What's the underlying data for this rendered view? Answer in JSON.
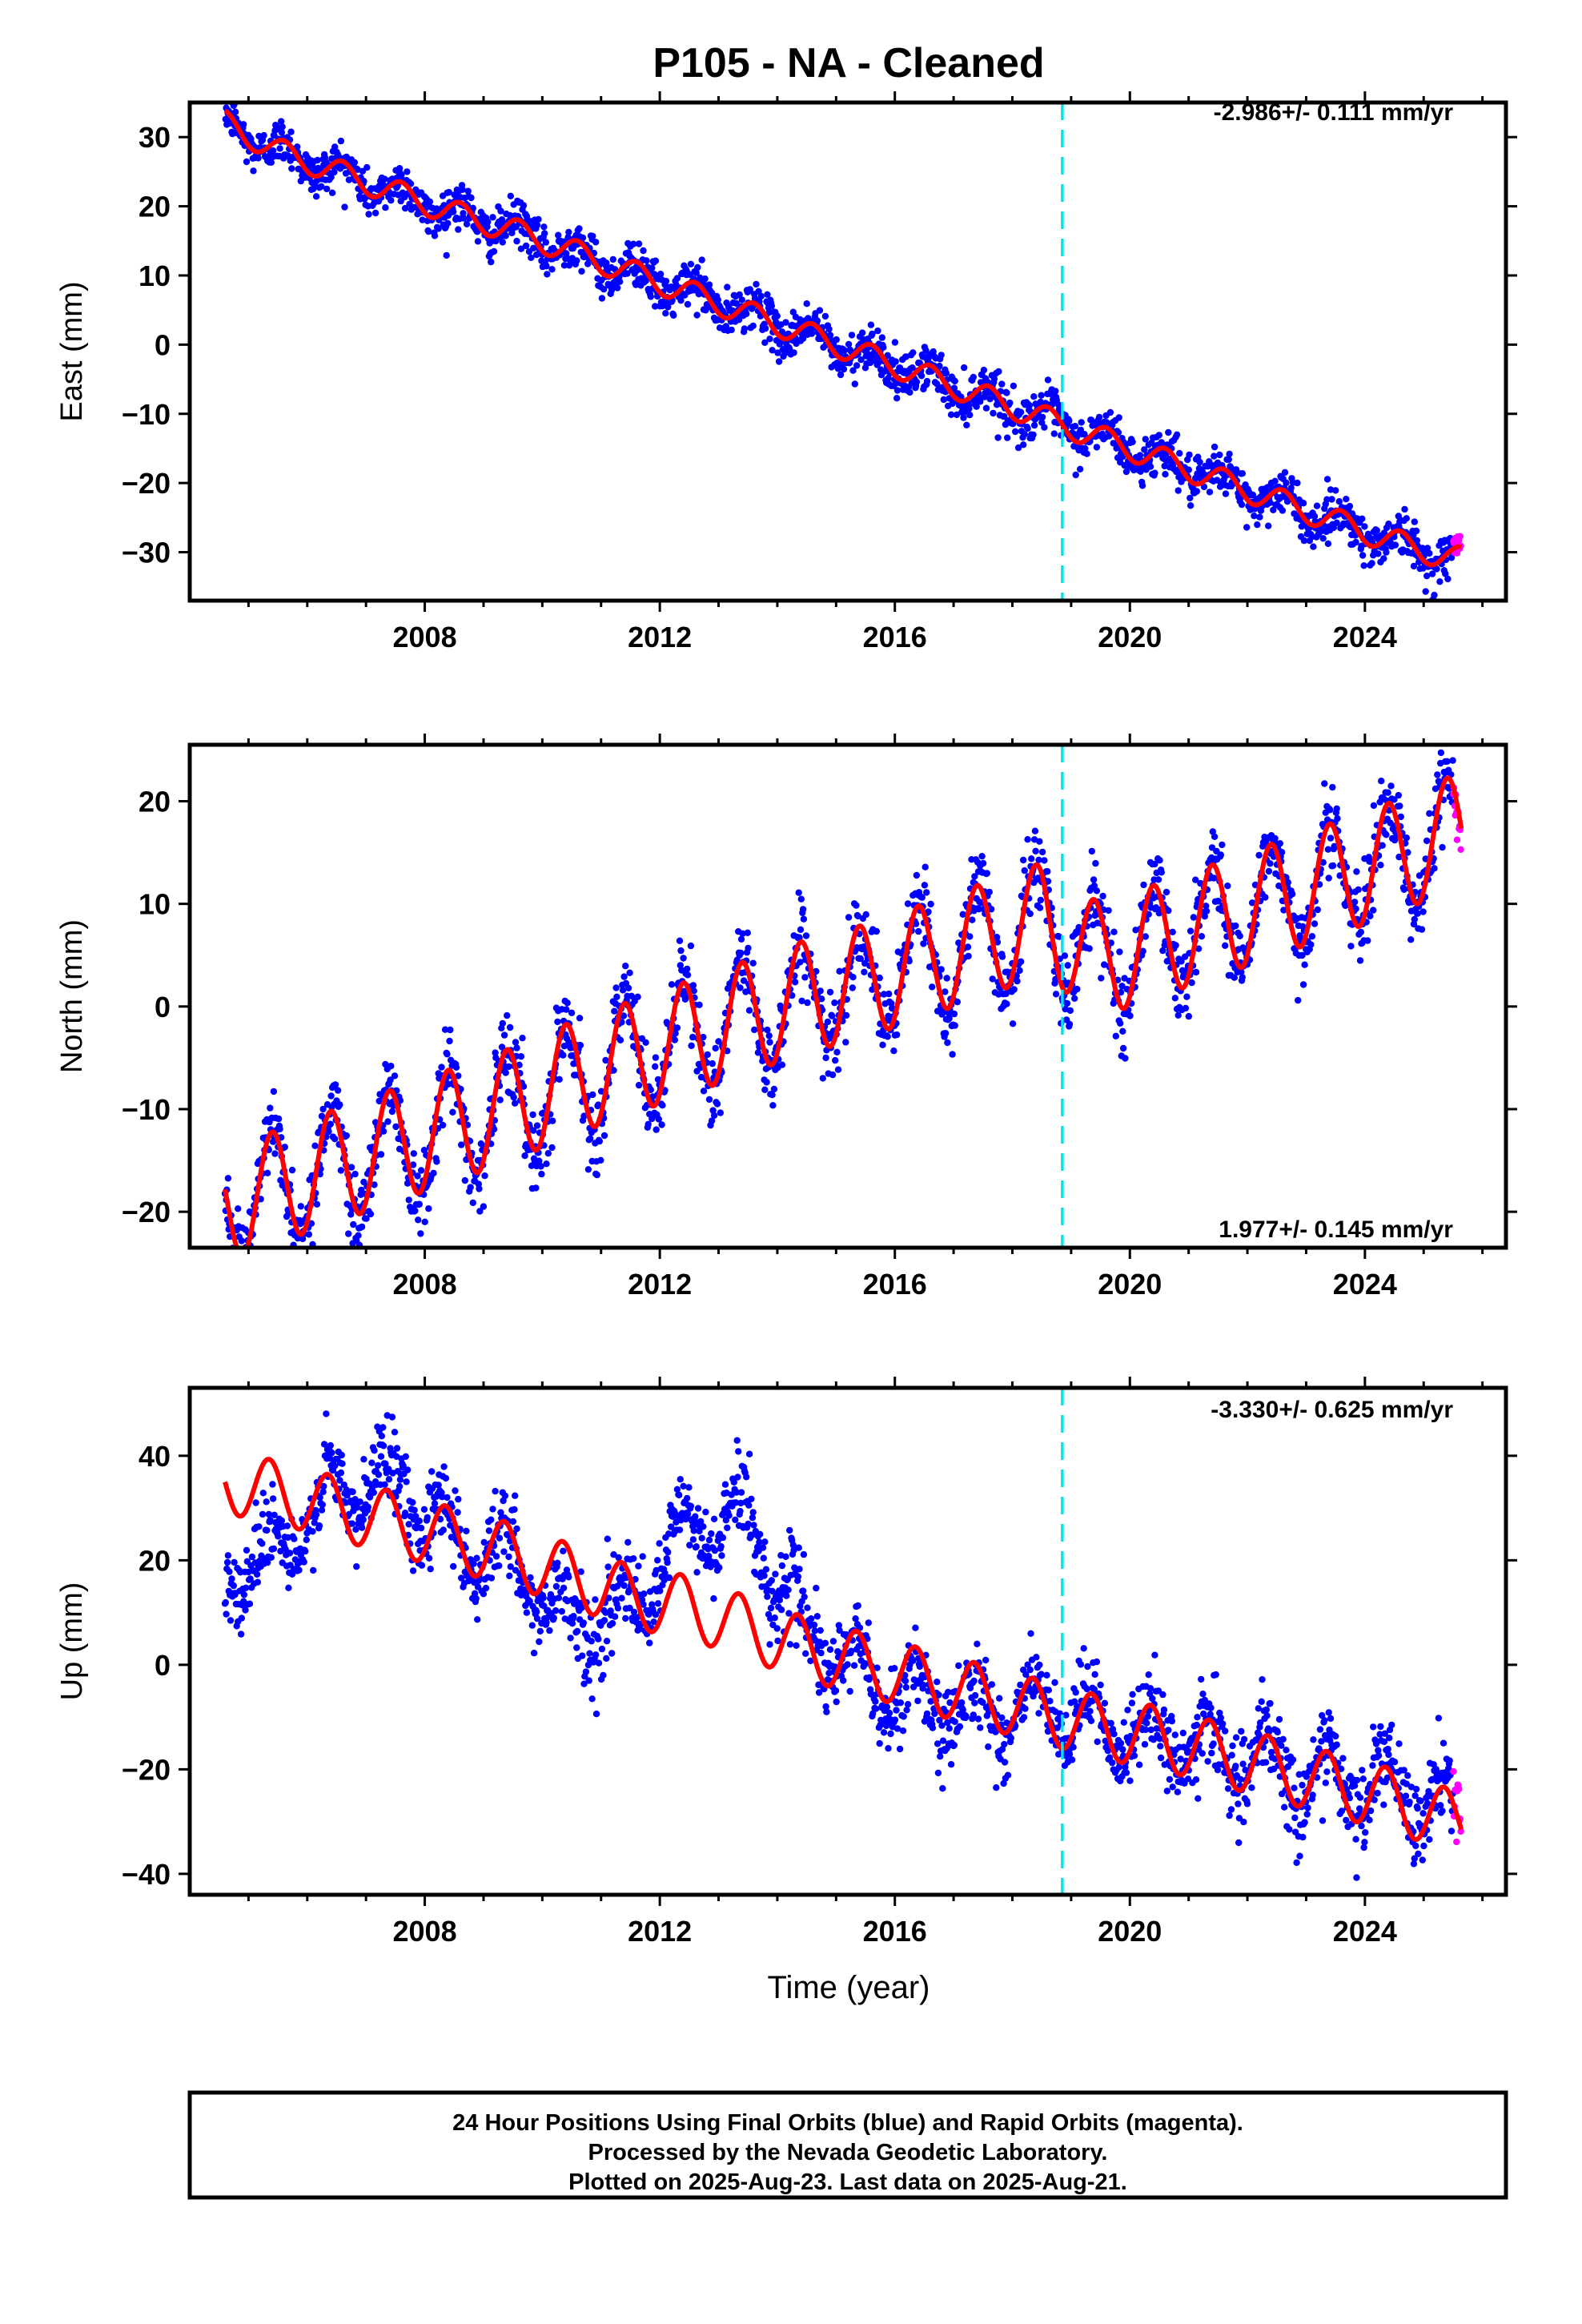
{
  "title": "P105  - NA - Cleaned",
  "xlabel": "Time (year)",
  "footer": {
    "line1": "24 Hour Positions Using Final Orbits (blue) and Rapid Orbits (magenta).",
    "line2": "Processed by the Nevada Geodetic Laboratory.",
    "line3": "Plotted on 2025-Aug-23. Last data on 2025-Aug-21."
  },
  "colors": {
    "final_orbits": "#0000ff",
    "rapid_orbits": "#ff00ff",
    "model": "#ff0000",
    "break": "#00e5ee"
  },
  "chart_data": [
    {
      "type": "scatter",
      "component": "east",
      "ylabel": "East (mm)",
      "rate_label": "-2.986+/- 0.111 mm/yr",
      "xlim": [
        2004.0,
        2026.4
      ],
      "ylim": [
        -37,
        35
      ],
      "xticks": [
        2008,
        2012,
        2016,
        2020,
        2024
      ],
      "yticks": [
        30,
        20,
        10,
        0,
        -10,
        -20,
        -30
      ],
      "grid": false,
      "vline_x": 2018.85,
      "data_start": 2004.6,
      "data_end": 2025.64,
      "model_x": [
        2004.6,
        2005.5,
        2006.5,
        2007.5,
        2008.5,
        2009.5,
        2010.5,
        2011.5,
        2012.5,
        2013.5,
        2014.5,
        2015.5,
        2016.5,
        2017.5,
        2018.5,
        2019.5,
        2020.5,
        2021.5,
        2022.5,
        2023.5,
        2024.5,
        2025.5
      ],
      "model_trend": [
        32.0,
        28.0,
        25.0,
        22.0,
        19.0,
        16.5,
        13.5,
        10.5,
        7.5,
        4.5,
        1.5,
        -1.5,
        -4.5,
        -7.5,
        -10.5,
        -13.5,
        -16.5,
        -19.5,
        -22.5,
        -25.5,
        -28.5,
        -31.0
      ],
      "seasonal_amplitude": 1.8,
      "scatter_noise": 1.6
    },
    {
      "type": "scatter",
      "component": "north",
      "ylabel": "North (mm)",
      "rate_label": "1.977+/- 0.145 mm/yr",
      "xlim": [
        2004.0,
        2026.4
      ],
      "ylim": [
        -23.5,
        25.5
      ],
      "xticks": [
        2008,
        2012,
        2016,
        2020,
        2024
      ],
      "yticks": [
        20,
        10,
        0,
        -10,
        -20
      ],
      "grid": false,
      "vline_x": 2018.85,
      "data_start": 2004.6,
      "data_end": 2025.64,
      "model_x": [
        2004.6,
        2005.5,
        2006.5,
        2007.5,
        2008.5,
        2009.5,
        2010.5,
        2011.5,
        2012.5,
        2013.5,
        2014.5,
        2015.5,
        2016.5,
        2017.5,
        2018.5,
        2019.5,
        2020.5,
        2021.5,
        2022.5,
        2023.5,
        2024.5,
        2025.5
      ],
      "model_trend": [
        -19.5,
        -17.5,
        -15.5,
        -13.5,
        -11.5,
        -9.5,
        -7.0,
        -5.0,
        -3.0,
        -1.0,
        1.0,
        2.5,
        4.5,
        6.5,
        8.5,
        4.5,
        6.5,
        8.5,
        10.5,
        12.5,
        14.5,
        17.0
      ],
      "seasonal_amplitude": 5.5,
      "scatter_noise": 2.0
    },
    {
      "type": "scatter",
      "component": "up",
      "ylabel": "Up (mm)",
      "rate_label": "-3.330+/- 0.625 mm/yr",
      "xlim": [
        2004.0,
        2026.4
      ],
      "ylim": [
        -44,
        53
      ],
      "xticks": [
        2008,
        2012,
        2016,
        2020,
        2024
      ],
      "yticks": [
        40,
        20,
        0,
        -20,
        -40
      ],
      "grid": false,
      "vline_x": 2018.85,
      "data_start": 2004.6,
      "data_end": 2025.64,
      "model_x": [
        2004.6,
        2005.5,
        2006.5,
        2007.5,
        2008.5,
        2009.5,
        2010.5,
        2011.5,
        2012.5,
        2013.5,
        2014.5,
        2015.5,
        2016.5,
        2017.5,
        2018.5,
        2019.5,
        2020.5,
        2021.5,
        2022.5,
        2023.5,
        2024.5,
        2025.5
      ],
      "model_trend": [
        35.0,
        33.0,
        30.0,
        27.0,
        24.0,
        21.0,
        17.0,
        13.0,
        11.0,
        7.0,
        3.0,
        0.0,
        -3.0,
        -6.0,
        -9.0,
        -12.0,
        -14.0,
        -17.0,
        -20.0,
        -23.0,
        -26.0,
        -30.0
      ],
      "data_trend": [
        18.0,
        22.0,
        33.0,
        36.0,
        24.0,
        20.0,
        8.0,
        10.0,
        26.0,
        28.0,
        6.0,
        -2.0,
        -8.0,
        -8.0,
        -9.0,
        -11.0,
        -14.0,
        -16.0,
        -20.0,
        -22.0,
        -24.0,
        -28.0
      ],
      "seasonal_amplitude": 6.0,
      "scatter_noise": 4.0
    }
  ]
}
